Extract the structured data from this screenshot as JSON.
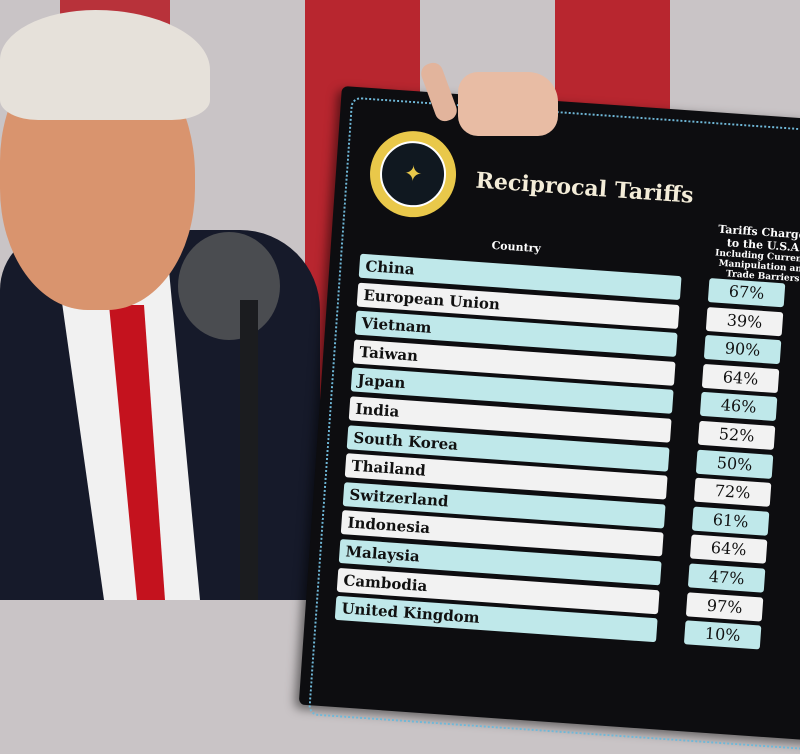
{
  "board": {
    "title": "Reciprocal Tariffs",
    "seal_text": "SEAL OF THE PRESIDENT OF THE UNITED STATES",
    "country_header": "Country",
    "tariff_header": "Tariffs Charged to the U.S.A.",
    "tariff_subheader": "Including Currency Manipulation and Trade Barriers",
    "rows": [
      {
        "country": "China",
        "tariff": "67%"
      },
      {
        "country": "European Union",
        "tariff": "39%"
      },
      {
        "country": "Vietnam",
        "tariff": "90%"
      },
      {
        "country": "Taiwan",
        "tariff": "64%"
      },
      {
        "country": "Japan",
        "tariff": "46%"
      },
      {
        "country": "India",
        "tariff": "52%"
      },
      {
        "country": "South Korea",
        "tariff": "50%"
      },
      {
        "country": "Thailand",
        "tariff": "72%"
      },
      {
        "country": "Switzerland",
        "tariff": "61%"
      },
      {
        "country": "Indonesia",
        "tariff": "64%"
      },
      {
        "country": "Malaysia",
        "tariff": "47%"
      },
      {
        "country": "Cambodia",
        "tariff": "97%"
      },
      {
        "country": "United Kingdom",
        "tariff": "10%"
      }
    ]
  },
  "colors": {
    "row_teal": "#bfe8ea",
    "row_white": "#f2f2f2",
    "board": "#0d0d10",
    "flag_red": "#b8262f"
  }
}
